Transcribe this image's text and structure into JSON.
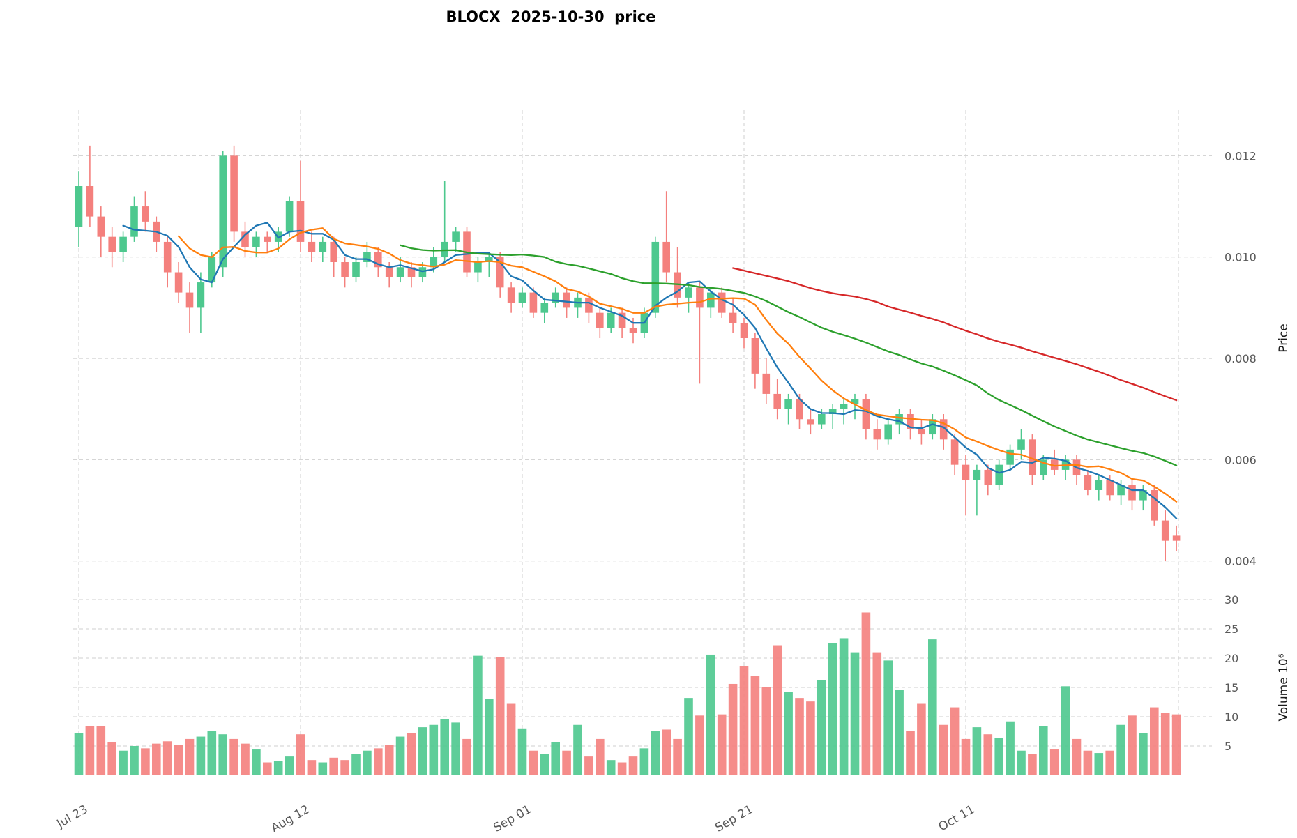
{
  "chart_data": {
    "type": "candlestick",
    "title": "BLOCX  2025-10-30  price",
    "price_axis_label": "Price",
    "volume_axis_label": "Volume  10⁶",
    "grid": true,
    "legend": "none",
    "price_scale": 0.0001,
    "volume_units": "millions",
    "price_range": [
      0.0039,
      0.0129
    ],
    "volume_range": [
      0,
      30
    ],
    "price_ticks": [
      {
        "value": 0.004,
        "label": "0.004"
      },
      {
        "value": 0.006,
        "label": "0.006"
      },
      {
        "value": 0.008,
        "label": "0.008"
      },
      {
        "value": 0.01,
        "label": "0.010"
      },
      {
        "value": 0.012,
        "label": "0.012"
      }
    ],
    "volume_ticks": [
      {
        "value": 5,
        "label": "5"
      },
      {
        "value": 10,
        "label": "10"
      },
      {
        "value": 15,
        "label": "15"
      },
      {
        "value": 20,
        "label": "20"
      },
      {
        "value": 25,
        "label": "25"
      },
      {
        "value": 30,
        "label": "30"
      }
    ],
    "x_ticks": [
      {
        "index": 0,
        "label": "Jul 23"
      },
      {
        "index": 20,
        "label": "Aug 12"
      },
      {
        "index": 40,
        "label": "Sep 01"
      },
      {
        "index": 60,
        "label": "Sep 21"
      },
      {
        "index": 80,
        "label": "Oct 11"
      }
    ],
    "colors": {
      "up": "#4dc88e",
      "down": "#f4807d",
      "grid": "#cfcfcf",
      "tick_text": "#595959",
      "axis_label_text": "#1a1a1a",
      "title": "#000000",
      "sma5": "#1f77b4",
      "sma10": "#ff7f0e",
      "sma30": "#2ca02c",
      "sma60": "#d62728"
    },
    "indicators": [
      {
        "name": "sma5",
        "window": 5
      },
      {
        "name": "sma10",
        "window": 10
      },
      {
        "name": "sma30",
        "window": 30
      },
      {
        "name": "sma60",
        "window": 60
      }
    ],
    "columns": [
      "open",
      "high",
      "low",
      "close",
      "volume_millions"
    ],
    "candles": [
      [
        106,
        117,
        102,
        114,
        7.2
      ],
      [
        114,
        122,
        106,
        108,
        8.4
      ],
      [
        108,
        110,
        100,
        104,
        8.4
      ],
      [
        104,
        106,
        98,
        101,
        5.6
      ],
      [
        101,
        105,
        99,
        104,
        4.2
      ],
      [
        104,
        112,
        103,
        110,
        5.0
      ],
      [
        110,
        113,
        105,
        107,
        4.6
      ],
      [
        107,
        108,
        101,
        103,
        5.4
      ],
      [
        103,
        104,
        94,
        97,
        5.8
      ],
      [
        97,
        99,
        91,
        93,
        5.2
      ],
      [
        93,
        95,
        85,
        90,
        6.2
      ],
      [
        90,
        97,
        85,
        95,
        6.6
      ],
      [
        95,
        101,
        94,
        100,
        7.6
      ],
      [
        98,
        121,
        96,
        120,
        7.0
      ],
      [
        120,
        122,
        103,
        105,
        6.2
      ],
      [
        105,
        107,
        100,
        102,
        5.4
      ],
      [
        102,
        105,
        100,
        104,
        4.4
      ],
      [
        104,
        105,
        101,
        103,
        2.2
      ],
      [
        103,
        106,
        101,
        105,
        2.4
      ],
      [
        105,
        112,
        104,
        111,
        3.2
      ],
      [
        111,
        119,
        101,
        103,
        7.0
      ],
      [
        103,
        105,
        99,
        101,
        2.6
      ],
      [
        101,
        104,
        99,
        103,
        2.2
      ],
      [
        103,
        104,
        96,
        99,
        3.0
      ],
      [
        99,
        100,
        94,
        96,
        2.6
      ],
      [
        96,
        100,
        95,
        99,
        3.6
      ],
      [
        99,
        103,
        98,
        101,
        4.2
      ],
      [
        101,
        102,
        96,
        98,
        4.6
      ],
      [
        98,
        99,
        94,
        96,
        5.2
      ],
      [
        96,
        100,
        95,
        98,
        6.6
      ],
      [
        98,
        99,
        94,
        96,
        7.2
      ],
      [
        96,
        99,
        95,
        98,
        8.2
      ],
      [
        98,
        102,
        97,
        100,
        8.6
      ],
      [
        100,
        115,
        99,
        103,
        9.6
      ],
      [
        103,
        106,
        101,
        105,
        9.0
      ],
      [
        105,
        106,
        96,
        97,
        6.2
      ],
      [
        97,
        100,
        95,
        99,
        20.4
      ],
      [
        99,
        101,
        96,
        100,
        13.0
      ],
      [
        100,
        101,
        92,
        94,
        20.2
      ],
      [
        94,
        95,
        89,
        91,
        12.2
      ],
      [
        91,
        94,
        90,
        93,
        8.0
      ],
      [
        93,
        94,
        88,
        89,
        4.2
      ],
      [
        89,
        92,
        87,
        91,
        3.6
      ],
      [
        91,
        94,
        90,
        93,
        5.6
      ],
      [
        93,
        94,
        88,
        90,
        4.2
      ],
      [
        90,
        93,
        88,
        92,
        8.6
      ],
      [
        92,
        93,
        87,
        89,
        3.2
      ],
      [
        89,
        90,
        84,
        86,
        6.2
      ],
      [
        86,
        90,
        85,
        89,
        2.6
      ],
      [
        89,
        90,
        84,
        86,
        2.2
      ],
      [
        86,
        88,
        83,
        85,
        3.2
      ],
      [
        85,
        90,
        84,
        89,
        4.6
      ],
      [
        89,
        104,
        88,
        103,
        7.6
      ],
      [
        103,
        113,
        95,
        97,
        7.8
      ],
      [
        97,
        102,
        90,
        92,
        6.2
      ],
      [
        92,
        95,
        89,
        94,
        13.2
      ],
      [
        94,
        95,
        75,
        90,
        10.2
      ],
      [
        90,
        94,
        88,
        93,
        20.6
      ],
      [
        93,
        94,
        88,
        89,
        10.4
      ],
      [
        89,
        92,
        85,
        87,
        15.6
      ],
      [
        87,
        88,
        82,
        84,
        18.6
      ],
      [
        84,
        85,
        74,
        77,
        17.0
      ],
      [
        77,
        80,
        71,
        73,
        15.0
      ],
      [
        73,
        76,
        68,
        70,
        22.2
      ],
      [
        70,
        73,
        67,
        72,
        14.2
      ],
      [
        72,
        73,
        66,
        68,
        13.2
      ],
      [
        68,
        70,
        65,
        67,
        12.6
      ],
      [
        67,
        70,
        66,
        69,
        16.2
      ],
      [
        69,
        71,
        66,
        70,
        22.6
      ],
      [
        70,
        72,
        67,
        71,
        23.4
      ],
      [
        71,
        73,
        68,
        72,
        21.0
      ],
      [
        72,
        73,
        64,
        66,
        27.8
      ],
      [
        66,
        68,
        62,
        64,
        21.0
      ],
      [
        64,
        68,
        63,
        67,
        19.6
      ],
      [
        67,
        70,
        65,
        69,
        14.6
      ],
      [
        69,
        70,
        64,
        66,
        7.6
      ],
      [
        66,
        68,
        63,
        65,
        12.2
      ],
      [
        65,
        69,
        64,
        68,
        23.2
      ],
      [
        68,
        69,
        62,
        64,
        8.6
      ],
      [
        64,
        65,
        57,
        59,
        11.6
      ],
      [
        59,
        61,
        49,
        56,
        6.2
      ],
      [
        56,
        59,
        49,
        58,
        8.2
      ],
      [
        58,
        59,
        53,
        55,
        7.0
      ],
      [
        55,
        60,
        54,
        59,
        6.4
      ],
      [
        59,
        63,
        58,
        62,
        9.2
      ],
      [
        62,
        66,
        60,
        64,
        4.2
      ],
      [
        64,
        65,
        55,
        57,
        3.6
      ],
      [
        57,
        61,
        56,
        60,
        8.4
      ],
      [
        60,
        62,
        57,
        58,
        4.4
      ],
      [
        58,
        61,
        56,
        60,
        15.2
      ],
      [
        60,
        61,
        55,
        57,
        6.2
      ],
      [
        57,
        58,
        53,
        54,
        4.2
      ],
      [
        54,
        57,
        52,
        56,
        3.8
      ],
      [
        56,
        57,
        52,
        53,
        4.2
      ],
      [
        53,
        56,
        51,
        55,
        8.6
      ],
      [
        55,
        56,
        50,
        52,
        10.2
      ],
      [
        52,
        55,
        50,
        54,
        7.2
      ],
      [
        54,
        55,
        47,
        48,
        11.6
      ],
      [
        48,
        50,
        40,
        44,
        10.6
      ],
      [
        45,
        47,
        42,
        44,
        10.4
      ]
    ]
  }
}
